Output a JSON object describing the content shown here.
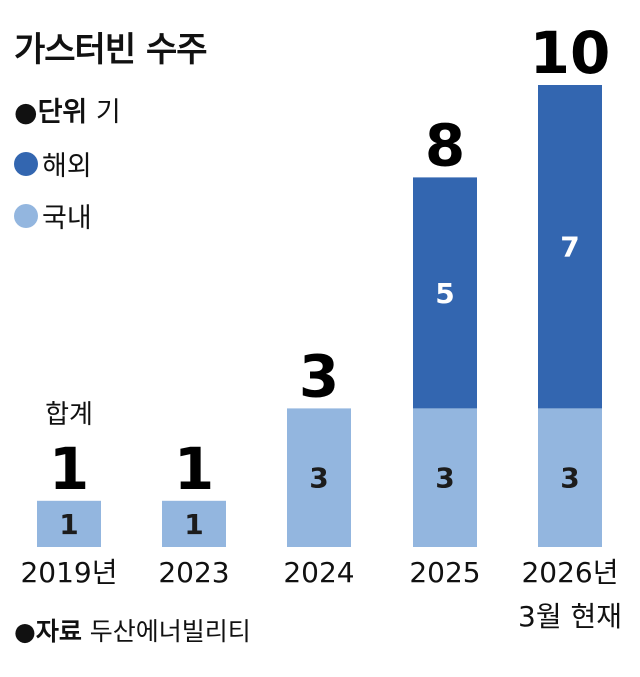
{
  "header": {
    "title": "가스터빈 수주",
    "unit_bullet": "●",
    "unit_label": "단위",
    "unit_value": "기"
  },
  "legend": [
    {
      "label": "해외",
      "color": "#3366b0"
    },
    {
      "label": "국내",
      "color": "#93b6df"
    }
  ],
  "footer": {
    "source_bullet": "●",
    "source_label": "자료",
    "source_value": "두산에너빌리티"
  },
  "chart_data": {
    "type": "bar",
    "stacked": true,
    "categories": [
      "2019년",
      "2023",
      "2024",
      "2025",
      "2026년\n3월 현재"
    ],
    "series": [
      {
        "name": "국내",
        "values": [
          1,
          1,
          3,
          3,
          3
        ],
        "color": "#93b6df"
      },
      {
        "name": "해외",
        "values": [
          0,
          0,
          0,
          5,
          7
        ],
        "color": "#3366b0"
      }
    ],
    "totals": [
      1,
      1,
      3,
      8,
      10
    ],
    "annotation": "합계",
    "ylim": [
      0,
      10
    ]
  }
}
